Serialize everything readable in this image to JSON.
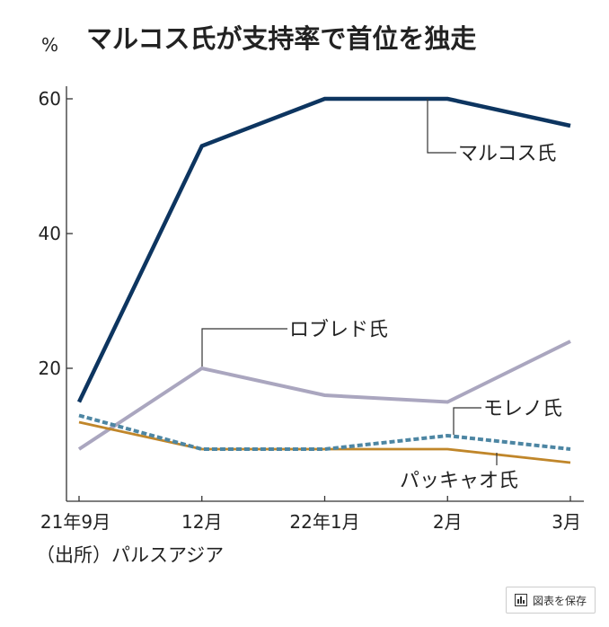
{
  "chart_data": {
    "type": "line",
    "title": "マルコス氏が支持率で首位を独走",
    "ylabel": "%",
    "xlabel": "",
    "categories": [
      "21年9月",
      "12月",
      "22年1月",
      "2月",
      "3月"
    ],
    "ylim": [
      0,
      60
    ],
    "yticks": [
      20,
      40,
      60
    ],
    "grid": false,
    "legend": "inline annotations",
    "series": [
      {
        "name": "マルコス氏",
        "values": [
          15,
          53,
          60,
          60,
          56
        ],
        "color": "#0d3560",
        "style": "solid"
      },
      {
        "name": "ロブレド氏",
        "values": [
          8,
          20,
          16,
          15,
          24
        ],
        "color": "#aaa6bf",
        "style": "solid"
      },
      {
        "name": "モレノ氏",
        "values": [
          13,
          8,
          8,
          10,
          8
        ],
        "color": "#4d86a3",
        "style": "dashed"
      },
      {
        "name": "パッキャオ氏",
        "values": [
          12,
          8,
          8,
          8,
          6
        ],
        "color": "#c0862a",
        "style": "solid"
      }
    ],
    "source": "（出所）パルスアジア"
  },
  "ui": {
    "save_button_label": "図表を保存",
    "save_icon": "chart-icon"
  }
}
